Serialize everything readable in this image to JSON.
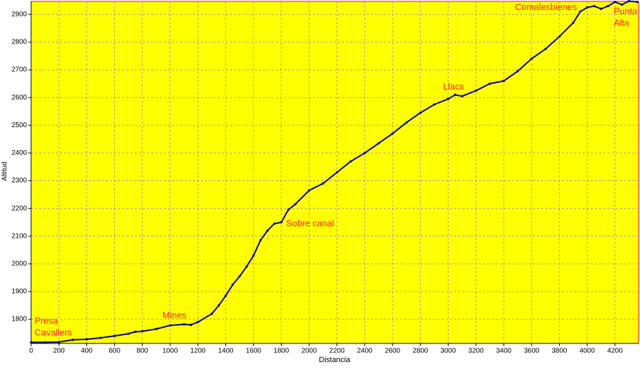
{
  "chart_data": {
    "type": "line",
    "x_label": "Distancia",
    "y_label": "Altitud",
    "x": [
      0,
      100,
      200,
      300,
      400,
      500,
      600,
      700,
      750,
      800,
      900,
      1000,
      1100,
      1150,
      1200,
      1300,
      1350,
      1400,
      1450,
      1500,
      1550,
      1600,
      1650,
      1700,
      1750,
      1800,
      1850,
      1900,
      2000,
      2100,
      2200,
      2300,
      2400,
      2500,
      2600,
      2700,
      2800,
      2900,
      3000,
      3050,
      3100,
      3200,
      3300,
      3400,
      3500,
      3600,
      3700,
      3800,
      3900,
      3950,
      4000,
      4050,
      4100,
      4150,
      4200,
      4250,
      4300,
      4360
    ],
    "series": [
      {
        "name": "Altitud",
        "color": "#000080",
        "values": [
          1717,
          1717,
          1718,
          1726,
          1728,
          1733,
          1740,
          1748,
          1755,
          1757,
          1765,
          1778,
          1782,
          1780,
          1790,
          1820,
          1850,
          1885,
          1925,
          1955,
          1990,
          2030,
          2085,
          2120,
          2145,
          2150,
          2195,
          2215,
          2265,
          2290,
          2330,
          2370,
          2400,
          2435,
          2470,
          2510,
          2545,
          2575,
          2595,
          2610,
          2605,
          2625,
          2650,
          2660,
          2695,
          2740,
          2775,
          2820,
          2870,
          2910,
          2925,
          2930,
          2920,
          2930,
          2945,
          2935,
          2948,
          2945
        ]
      }
    ],
    "annotations": [
      [
        "Presa",
        "Cavallers"
      ],
      [
        "Mines"
      ],
      [
        "Sobre canal"
      ],
      [
        "Llacs"
      ],
      [
        "Comalesbienes"
      ],
      [
        "Punta",
        "Alta"
      ]
    ],
    "xlim": [
      0,
      4370
    ],
    "ylim": [
      1713,
      2947
    ],
    "xticks": [
      0,
      200,
      400,
      600,
      800,
      1000,
      1200,
      1400,
      1600,
      1800,
      2000,
      2200,
      2400,
      2600,
      2800,
      3000,
      3200,
      3400,
      3600,
      3800,
      4000,
      4200
    ],
    "yticks": [
      1800,
      1900,
      2000,
      2100,
      2200,
      2300,
      2400,
      2500,
      2600,
      2700,
      2800,
      2900
    ],
    "grid": true,
    "background": "#ffff00"
  }
}
